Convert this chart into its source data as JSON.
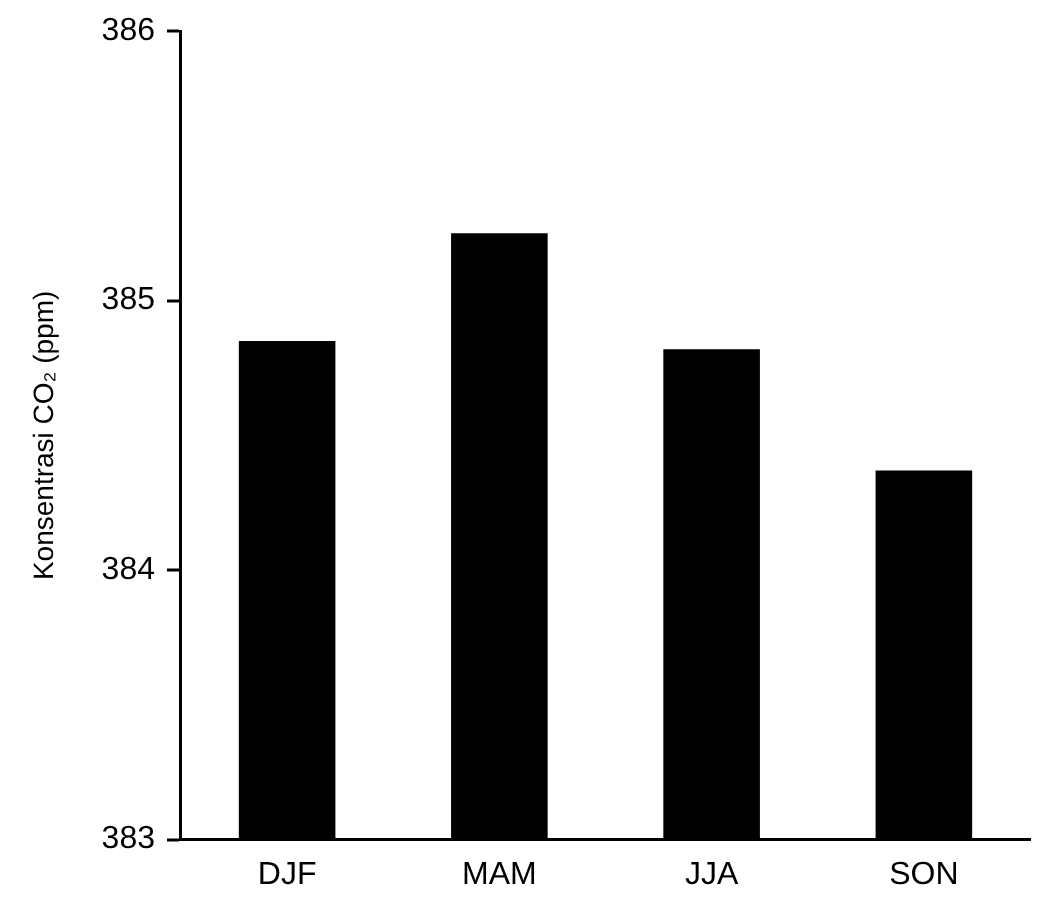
{
  "chart_data": {
    "type": "bar",
    "ylabel": "Konsentrasi CO₂ (ppm)",
    "categories": [
      "DJF",
      "MAM",
      "JJA",
      "SON"
    ],
    "values": [
      384.85,
      385.25,
      384.82,
      384.37
    ],
    "color": "#000000",
    "ylim": [
      383,
      386
    ],
    "yticks": [
      383,
      384,
      385,
      386
    ],
    "grid": false,
    "legend": false
  }
}
